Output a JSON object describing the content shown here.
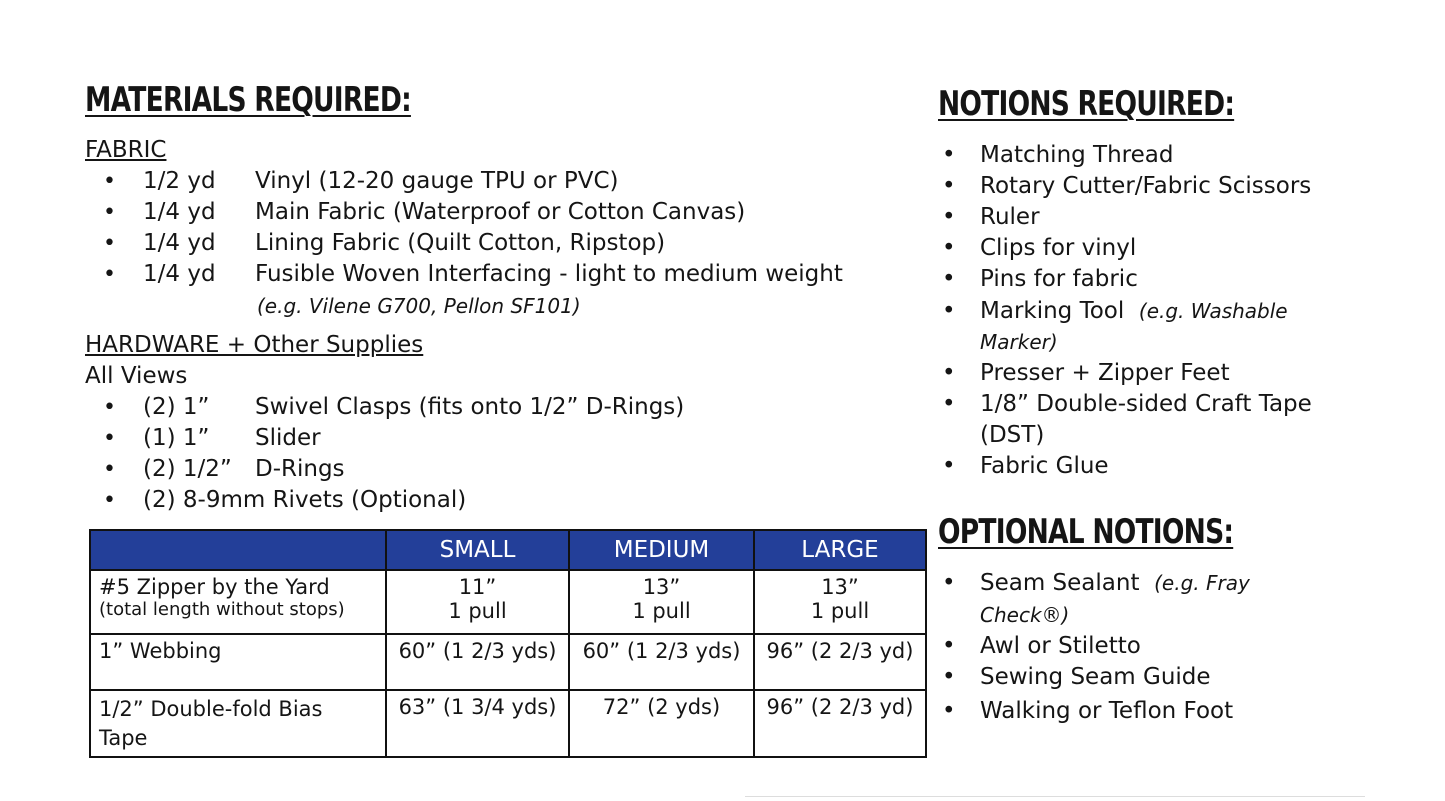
{
  "materials": {
    "heading": "MATERIALS REQUIRED:",
    "fabric_label": "FABRIC",
    "fabric": [
      {
        "qty": "1/2 yd",
        "desc": "Vinyl (12-20 gauge TPU or PVC)"
      },
      {
        "qty": "1/4 yd",
        "desc": "Main Fabric (Waterproof or Cotton Canvas)"
      },
      {
        "qty": "1/4 yd",
        "desc": "Lining Fabric (Quilt Cotton, Ripstop)"
      },
      {
        "qty": "1/4 yd",
        "desc": "Fusible Woven Interfacing - light to medium weight"
      }
    ],
    "fabric_note": "(e.g. Vilene G700, Pellon SF101)",
    "hardware_label": "HARDWARE + Other Supplies",
    "views_label": "All Views",
    "hardware": [
      {
        "qty": "(2) 1”",
        "desc": "Swivel Clasps (fits onto 1/2” D-Rings)"
      },
      {
        "qty": "(1) 1”",
        "desc": "Slider"
      },
      {
        "qty": "(2) 1/2”",
        "desc": "D-Rings"
      },
      {
        "qty": "(2) 8-9mm Rivets (Optional)",
        "desc": ""
      }
    ]
  },
  "table": {
    "header_color": "#233f99",
    "columns": [
      "",
      "SMALL",
      "MEDIUM",
      "LARGE"
    ],
    "rows": [
      {
        "label": "#5 Zipper by the Yard",
        "sublabel": "(total length without stops)",
        "values": [
          "11”",
          "13”",
          "13”"
        ],
        "subvalues": [
          "1 pull",
          "1 pull",
          "1 pull"
        ]
      },
      {
        "label": "1” Webbing",
        "values": [
          "60” (1 2/3 yds)",
          "60” (1 2/3 yds)",
          "96” (2 2/3 yd)"
        ]
      },
      {
        "label": "1/2” Double-fold Bias Tape",
        "values": [
          "63” (1 3/4 yds)",
          "72” (2 yds)",
          "96” (2 2/3 yd)"
        ]
      }
    ]
  },
  "notions": {
    "heading": "NOTIONS REQUIRED:",
    "items": [
      {
        "text": "Matching Thread"
      },
      {
        "text": "Rotary Cutter/Fabric Scissors"
      },
      {
        "text": "Ruler"
      },
      {
        "text": "Clips for vinyl"
      },
      {
        "text": "Pins for fabric"
      },
      {
        "text": "Marking Tool ",
        "note": "(e.g. Washable",
        "cont": "Marker)"
      },
      {
        "text": "Presser + Zipper Feet"
      },
      {
        "text": "1/8” Double-sided Craft Tape",
        "cont2": "(DST)"
      },
      {
        "text": "Fabric Glue"
      }
    ]
  },
  "optional": {
    "heading": "OPTIONAL NOTIONS:",
    "items": [
      {
        "text": "Seam Sealant ",
        "note": "(e.g. Fray",
        "cont": "Check®)"
      },
      {
        "text": "Awl or Stiletto"
      },
      {
        "text": "Sewing Seam Guide"
      },
      {
        "text": "Walking or Teflon Foot"
      }
    ]
  }
}
